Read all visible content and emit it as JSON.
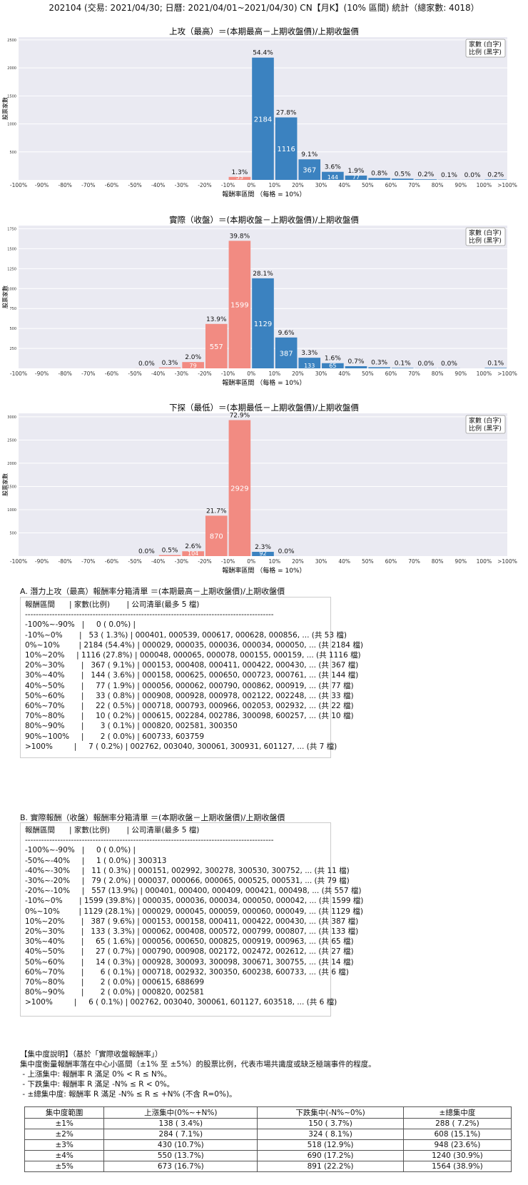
{
  "title": "202104 (交易: 2021/04/30; 日曆: 2021/04/01~2021/04/30) CN【月K】(10% 區間) 統計（總家數: 4018）",
  "legend_lines": [
    "家數 (白字)",
    "比例 (黑字)"
  ],
  "colors": {
    "positive": "#3b82c0",
    "negative": "#f28b82",
    "plot_bg": "#eaeaf2"
  },
  "chart_data": [
    {
      "type": "bar",
      "title": "上攻（最高）＝(本期最高－上期收盤價)/上期收盤價",
      "xlabel": "報酬率區間 （每格 = 10%）",
      "ylabel": "股票家數",
      "categories": [
        "-100%~-90%",
        "-90%~-80%",
        "-80%~-70%",
        "-70%~-60%",
        "-60%~-50%",
        "-50%~-40%",
        "-40%~-30%",
        "-30%~-20%",
        "-20%~-10%",
        "-10%~0%",
        "0%~10%",
        "10%~20%",
        "20%~30%",
        "30%~40%",
        "40%~50%",
        "50%~60%",
        "60%~70%",
        "70%~80%",
        "80%~90%",
        "90%~100%",
        ">100%"
      ],
      "x_tick_labels": [
        "-100%",
        "-90%",
        "-80%",
        "-70%",
        "-60%",
        "-50%",
        "-40%",
        "-30%",
        "-20%",
        "-10%",
        "0%",
        "10%",
        "20%",
        "30%",
        "40%",
        "50%",
        "60%",
        "70%",
        "80%",
        "90%",
        "100%",
        ">100%"
      ],
      "values": [
        0,
        null,
        null,
        null,
        null,
        null,
        null,
        null,
        null,
        53,
        2184,
        1116,
        367,
        144,
        77,
        33,
        22,
        10,
        3,
        2,
        7
      ],
      "pct_labels": [
        "",
        "",
        "",
        "",
        "",
        "",
        "",
        "",
        "",
        "1.3%",
        "54.4%",
        "27.8%",
        "9.1%",
        "3.6%",
        "1.9%",
        "0.8%",
        "0.5%",
        "0.2%",
        "0.1%",
        "0.0%",
        "0.2%"
      ],
      "yticks": [
        500,
        1000,
        1500,
        2000,
        2500
      ],
      "ylim": [
        0,
        2550
      ]
    },
    {
      "type": "bar",
      "title": "實際（收盤）＝(本期收盤－上期收盤價)/上期收盤價",
      "xlabel": "報酬率區間 （每格 = 10%）",
      "ylabel": "股票家數",
      "categories": [
        "-100%~-90%",
        "-90%~-80%",
        "-80%~-70%",
        "-70%~-60%",
        "-60%~-50%",
        "-50%~-40%",
        "-40%~-30%",
        "-30%~-20%",
        "-20%~-10%",
        "-10%~0%",
        "0%~10%",
        "10%~20%",
        "20%~30%",
        "30%~40%",
        "40%~50%",
        "50%~60%",
        "60%~70%",
        "70%~80%",
        "80%~90%",
        "90%~100%",
        ">100%"
      ],
      "x_tick_labels": [
        "-100%",
        "-90%",
        "-80%",
        "-70%",
        "-60%",
        "-50%",
        "-40%",
        "-30%",
        "-20%",
        "-10%",
        "0%",
        "10%",
        "20%",
        "30%",
        "40%",
        "50%",
        "60%",
        "70%",
        "80%",
        "90%",
        "100%",
        ">100%"
      ],
      "values": [
        0,
        null,
        null,
        null,
        null,
        1,
        11,
        79,
        557,
        1599,
        1129,
        387,
        133,
        65,
        27,
        14,
        6,
        2,
        2,
        null,
        6
      ],
      "pct_labels": [
        "",
        "",
        "",
        "",
        "",
        "0.0%",
        "0.3%",
        "2.0%",
        "13.9%",
        "39.8%",
        "28.1%",
        "9.6%",
        "3.3%",
        "1.6%",
        "0.7%",
        "0.3%",
        "0.1%",
        "0.0%",
        "0.0%",
        "",
        "0.1%"
      ],
      "yticks": [
        250,
        500,
        750,
        1000,
        1250,
        1500,
        1750
      ],
      "ylim": [
        0,
        1790
      ]
    },
    {
      "type": "bar",
      "title": "下探（最低）＝(本期最低－上期收盤價)/上期收盤價",
      "xlabel": "報酬率區間 （每格 = 10%）",
      "ylabel": "股票家數",
      "categories": [
        "-100%~-90%",
        "-90%~-80%",
        "-80%~-70%",
        "-70%~-60%",
        "-60%~-50%",
        "-50%~-40%",
        "-40%~-30%",
        "-30%~-20%",
        "-20%~-10%",
        "-10%~0%",
        "0%~10%",
        "10%~20%",
        "20%~30%",
        "30%~40%",
        "40%~50%",
        "50%~60%",
        "60%~70%",
        "70%~80%",
        "80%~90%",
        "90%~100%",
        ">100%"
      ],
      "x_tick_labels": [
        "-100%",
        "-90%",
        "-80%",
        "-70%",
        "-60%",
        "-50%",
        "-40%",
        "-30%",
        "-20%",
        "-10%",
        "0%",
        "10%",
        "20%",
        "30%",
        "40%",
        "50%",
        "60%",
        "70%",
        "80%",
        "90%",
        "100%",
        ">100%"
      ],
      "values": [
        null,
        null,
        null,
        null,
        null,
        1,
        22,
        104,
        870,
        2929,
        92,
        1,
        null,
        null,
        null,
        null,
        null,
        null,
        null,
        null,
        null
      ],
      "pct_labels": [
        "",
        "",
        "",
        "",
        "",
        "0.0%",
        "0.5%",
        "2.6%",
        "21.7%",
        "72.9%",
        "2.3%",
        "0.0%",
        "",
        "",
        "",
        "",
        "",
        "",
        "",
        "",
        ""
      ],
      "white_labels": [
        "",
        "",
        "",
        "",
        "",
        "",
        "",
        "104",
        "870",
        "2929",
        "92",
        "",
        "",
        "",
        "",
        "",
        "",
        "",
        "",
        "",
        ""
      ],
      "yticks": [
        500,
        1000,
        1500,
        2000,
        2500,
        3000
      ],
      "ylim": [
        0,
        3075
      ]
    }
  ],
  "list_a": {
    "title": "A. 潛力上攻（最高）報酬率分箱清單 ＝(本期最高－上期收盤價)/上期收盤價",
    "lines": [
      "報酬區間      | 家數(比例)       | 公司清單(最多 5 檔)",
      "--------------------------------------------------------------------------------------------",
      "-100%~-90%   |     0 ( 0.0%) |",
      "-10%~0%       |   53 ( 1.3%) | 000401, 000539, 000617, 000628, 000856, ... (共 53 檔)",
      "0%~10%        | 2184 (54.4%) | 000029, 000035, 000036, 000034, 000050, ... (共 2184 檔)",
      "10%~20%     | 1116 (27.8%) | 000048, 000065, 000078, 000155, 000159, ... (共 1116 檔)",
      "20%~30%       |   367 ( 9.1%) | 000153, 000408, 000411, 000422, 000430, ... (共 367 檔)",
      "30%~40%       |   144 ( 3.6%) | 000158, 000625, 000650, 000723, 000761, ... (共 144 檔)",
      "40%~50%       |     77 ( 1.9%) | 000056, 000062, 000790, 000862, 000919, ... (共 77 檔)",
      "50%~60%       |     33 ( 0.8%) | 000908, 000928, 000978, 002122, 002248, ... (共 33 檔)",
      "60%~70%       |     22 ( 0.5%) | 000718, 000793, 000966, 002053, 002932, ... (共 22 檔)",
      "70%~80%       |     10 ( 0.2%) | 000615, 002284, 002786, 300098, 600257, ... (共 10 檔)",
      "80%~90%       |       3 ( 0.1%) | 000820, 002581, 300350",
      "90%~100%     |       2 ( 0.0%) | 600733, 603759",
      ">100%         |     7 ( 0.2%) | 002762, 003040, 300061, 300931, 601127, ... (共 7 檔)"
    ]
  },
  "list_b": {
    "title": "B. 實際報酬（收盤）報酬率分箱清單 ＝(本期收盤－上期收盤價)/上期收盤價",
    "lines": [
      "報酬區間      | 家數(比例)       | 公司清單(最多 5 檔)",
      "--------------------------------------------------------------------------------------------",
      "-100%~-90%   |     0 ( 0.0%) |",
      "-50%~-40%     |     1 ( 0.0%) | 300313",
      "-40%~-30%     |   11 ( 0.3%) | 000151, 002992, 300278, 300530, 300752, ... (共 11 檔)",
      "-30%~-20%     |   79 ( 2.0%) | 000037, 000066, 000065, 000525, 000531, ... (共 79 檔)",
      "-20%~-10%     |   557 (13.9%) | 000401, 000400, 000409, 000421, 000498, ... (共 557 檔)",
      "-10%~0%       | 1599 (39.8%) | 000035, 000036, 000034, 000050, 000042, ... (共 1599 檔)",
      "0%~10%        | 1129 (28.1%) | 000029, 000045, 000059, 000060, 000049, ... (共 1129 檔)",
      "10%~20%       |   387 ( 9.6%) | 000153, 000158, 000411, 000422, 000430, ... (共 387 檔)",
      "20%~30%       |   133 ( 3.3%) | 000062, 000408, 000572, 000799, 000807, ... (共 133 檔)",
      "30%~40%       |     65 ( 1.6%) | 000056, 000650, 000825, 000919, 000963, ... (共 65 檔)",
      "40%~50%       |     27 ( 0.7%) | 000790, 000908, 002172, 002472, 002612, ... (共 27 檔)",
      "50%~60%       |     14 ( 0.3%) | 000928, 300093, 300098, 300671, 300755, ... (共 14 檔)",
      "60%~70%       |       6 ( 0.1%) | 000718, 002932, 300350, 600238, 600733, ... (共 6 檔)",
      "70%~80%       |       2 ( 0.0%) | 000615, 688699",
      "80%~90%       |       2 ( 0.0%) | 000820, 002581",
      ">100%         |     6 ( 0.1%) | 002762, 003040, 300061, 601127, 603518, ... (共 6 檔)"
    ]
  },
  "concentration": {
    "lines": [
      "【集中度說明】（基於「實際收盤報酬率」）",
      "集中度衡量報酬率落在中心小區間（±1% 至 ±5%）的股票比例，代表市場共識度或缺乏極端事件的程度。",
      " - 上漲集中: 報酬率 R 滿足 0% < R ≤ N%。",
      " - 下跌集中: 報酬率 R 滿足 -N% ≤ R < 0%。",
      " - ±總集中度: 報酬率 R 滿足 -N% ≤ R ≤ +N% (不含 R=0%)。"
    ],
    "headers": [
      "集中度範圍",
      "上漲集中(0%~+N%)",
      "下跌集中(-N%~0%)",
      "±總集中度"
    ],
    "rows": [
      [
        "±1%",
        "138 ( 3.4%)",
        "150 ( 3.7%)",
        "288 ( 7.2%)"
      ],
      [
        "±2%",
        "284 ( 7.1%)",
        "324 ( 8.1%)",
        "608 (15.1%)"
      ],
      [
        "±3%",
        "430 (10.7%)",
        "518 (12.9%)",
        "948 (23.6%)"
      ],
      [
        "±4%",
        "550 (13.7%)",
        "690 (17.2%)",
        "1240 (30.9%)"
      ],
      [
        "±5%",
        "673 (16.7%)",
        "891 (22.2%)",
        "1564 (38.9%)"
      ]
    ]
  }
}
